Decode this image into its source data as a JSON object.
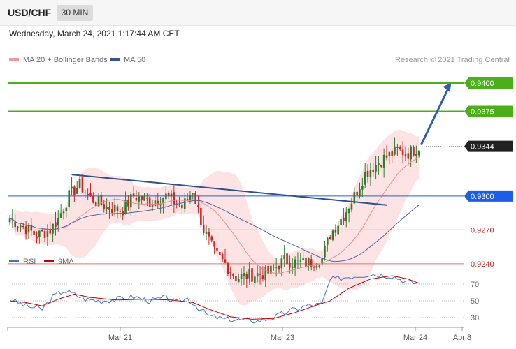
{
  "header": {
    "symbol": "USD/CHF",
    "timeframe": "30 MIN"
  },
  "datetime": "Wednesday, March 24, 2021 1:17:44 AM CET",
  "legend": {
    "ma20": {
      "label": "MA 20 + Bollinger Bands",
      "color": "#ef9a9a"
    },
    "ma50": {
      "label": "MA 50",
      "color": "#2f5597"
    }
  },
  "credit": "Research © 2021 Trading Central",
  "rsi_legend": {
    "rsi": {
      "label": "RSI",
      "color": "#4472c4"
    },
    "ma9": {
      "label": "9MA",
      "color": "#c00000"
    }
  },
  "colors": {
    "up": "#2e7d32",
    "down": "#c62828",
    "resistance": "#4caf1a",
    "pivot": "#1e5ee6",
    "support": "#e57373",
    "last": "#222222",
    "bands": "#fde2e2"
  },
  "chart_data": [
    {
      "type": "candlestick",
      "title": "USD/CHF",
      "x_ticks": [
        "Mar 21",
        "Mar 23",
        "Mar 24",
        "Apr 8"
      ],
      "ylim": [
        0.9214,
        0.9413
      ],
      "levels": [
        {
          "label": "0.9400",
          "value": 0.94,
          "kind": "resistance"
        },
        {
          "label": "0.9375",
          "value": 0.9375,
          "kind": "resistance"
        },
        {
          "label": "0.9344",
          "value": 0.9344,
          "kind": "last"
        },
        {
          "label": "0.9300",
          "value": 0.93,
          "kind": "pivot"
        },
        {
          "label": "0.9270",
          "value": 0.927,
          "kind": "support"
        },
        {
          "label": "0.9240",
          "value": 0.924,
          "kind": "support"
        }
      ],
      "close_anchors": [
        [
          0,
          0.928
        ],
        [
          5,
          0.9273
        ],
        [
          10,
          0.9265
        ],
        [
          15,
          0.927
        ],
        [
          18,
          0.928
        ],
        [
          22,
          0.93
        ],
        [
          26,
          0.931
        ],
        [
          30,
          0.9298
        ],
        [
          36,
          0.929
        ],
        [
          42,
          0.9288
        ],
        [
          46,
          0.93
        ],
        [
          52,
          0.9295
        ],
        [
          58,
          0.93
        ],
        [
          64,
          0.929
        ],
        [
          68,
          0.9305
        ],
        [
          72,
          0.927
        ],
        [
          76,
          0.925
        ],
        [
          80,
          0.924
        ],
        [
          84,
          0.9228
        ],
        [
          90,
          0.923
        ],
        [
          96,
          0.9232
        ],
        [
          102,
          0.9243
        ],
        [
          110,
          0.924
        ],
        [
          116,
          0.9245
        ],
        [
          119,
          0.9266
        ],
        [
          124,
          0.9283
        ],
        [
          128,
          0.93
        ],
        [
          132,
          0.932
        ],
        [
          138,
          0.9332
        ],
        [
          144,
          0.934
        ],
        [
          148,
          0.9338
        ],
        [
          152,
          0.9344
        ]
      ],
      "trendline": {
        "from": [
          23,
          0.9319
        ],
        "to": [
          140,
          0.9292
        ]
      },
      "forecast_arrow": {
        "from": [
          152,
          0.9344
        ],
        "to": [
          164,
          0.94
        ]
      }
    },
    {
      "type": "line",
      "title": "RSI",
      "series": [
        {
          "name": "RSI"
        },
        {
          "name": "9MA"
        }
      ],
      "y_ticks": [
        70,
        50,
        30
      ],
      "ylim": [
        20,
        90
      ],
      "rsi_anchors": [
        [
          0,
          52
        ],
        [
          6,
          44
        ],
        [
          12,
          40
        ],
        [
          16,
          55
        ],
        [
          20,
          62
        ],
        [
          24,
          58
        ],
        [
          28,
          52
        ],
        [
          34,
          50
        ],
        [
          40,
          52
        ],
        [
          46,
          55
        ],
        [
          52,
          50
        ],
        [
          58,
          54
        ],
        [
          62,
          48
        ],
        [
          66,
          53
        ],
        [
          70,
          42
        ],
        [
          74,
          32
        ],
        [
          80,
          28
        ],
        [
          86,
          27
        ],
        [
          92,
          26
        ],
        [
          98,
          30
        ],
        [
          104,
          38
        ],
        [
          110,
          44
        ],
        [
          116,
          46
        ],
        [
          119,
          75
        ],
        [
          126,
          79
        ],
        [
          134,
          82
        ],
        [
          142,
          80
        ],
        [
          148,
          72
        ],
        [
          152,
          71
        ]
      ],
      "ma9_anchors": [
        [
          0,
          50
        ],
        [
          6,
          48
        ],
        [
          12,
          44
        ],
        [
          18,
          52
        ],
        [
          24,
          58
        ],
        [
          30,
          54
        ],
        [
          40,
          51
        ],
        [
          50,
          52
        ],
        [
          60,
          51
        ],
        [
          68,
          48
        ],
        [
          74,
          40
        ],
        [
          82,
          31
        ],
        [
          90,
          28
        ],
        [
          98,
          29
        ],
        [
          106,
          36
        ],
        [
          114,
          45
        ],
        [
          119,
          50
        ],
        [
          126,
          65
        ],
        [
          134,
          76
        ],
        [
          142,
          80
        ],
        [
          148,
          76
        ],
        [
          152,
          71
        ]
      ]
    }
  ]
}
